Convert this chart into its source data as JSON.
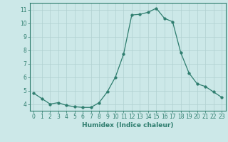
{
  "x": [
    0,
    1,
    2,
    3,
    4,
    5,
    6,
    7,
    8,
    9,
    10,
    11,
    12,
    13,
    14,
    15,
    16,
    17,
    18,
    19,
    20,
    21,
    22,
    23
  ],
  "y": [
    4.8,
    4.4,
    4.0,
    4.1,
    3.9,
    3.8,
    3.75,
    3.75,
    4.1,
    4.9,
    6.0,
    7.7,
    10.6,
    10.65,
    10.8,
    11.1,
    10.35,
    10.1,
    7.8,
    6.3,
    5.5,
    5.3,
    4.9,
    4.5
  ],
  "line_color": "#2e7d6e",
  "marker": "o",
  "marker_size": 2.5,
  "bg_color": "#cce8e8",
  "grid_color": "#b0d0d0",
  "xlabel": "Humidex (Indice chaleur)",
  "xlim": [
    -0.5,
    23.5
  ],
  "ylim": [
    3.5,
    11.5
  ],
  "yticks": [
    4,
    5,
    6,
    7,
    8,
    9,
    10,
    11
  ],
  "xticks": [
    0,
    1,
    2,
    3,
    4,
    5,
    6,
    7,
    8,
    9,
    10,
    11,
    12,
    13,
    14,
    15,
    16,
    17,
    18,
    19,
    20,
    21,
    22,
    23
  ],
  "tick_color": "#2e7d6e",
  "label_color": "#2e7d6e",
  "spine_color": "#2e7d6e"
}
